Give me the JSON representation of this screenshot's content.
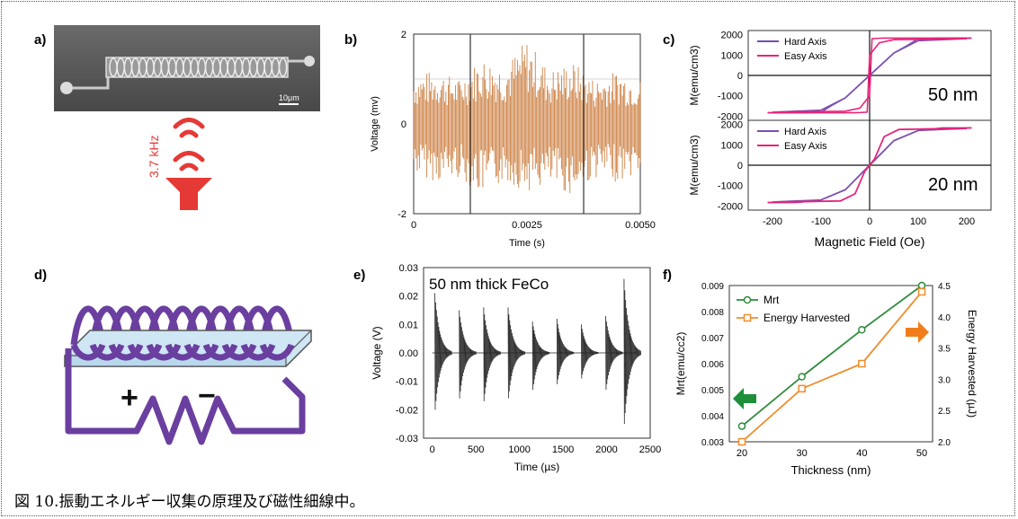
{
  "figure": {
    "caption": "図 10.振動エネルギー収集の原理及び磁性細線中。",
    "panels": {
      "a": {
        "label": "a)",
        "scale_bar": "10μm",
        "frequency": "3.7 kHz",
        "colors": {
          "speaker": "#e53935"
        },
        "icons": [
          "sound-wave-icon",
          "speaker-icon"
        ]
      },
      "d": {
        "label": "d)",
        "plus": "+",
        "minus": "−",
        "colors": {
          "coil": "#6a3fa0",
          "core": "#cfe6f5"
        },
        "icons": [
          "coil-icon",
          "resistor-icon"
        ]
      }
    }
  },
  "chart_data": [
    {
      "panel": "b)",
      "type": "line",
      "title": "",
      "xlabel": "Time (s)",
      "ylabel": "Voltage (mv)",
      "xlim": [
        0,
        0.005
      ],
      "ylim": [
        -2,
        2
      ],
      "xticks": [
        "0",
        "0.0025",
        "0.0050"
      ],
      "yticks": [
        "2",
        "0",
        "-2"
      ],
      "vertical_lines_x": [
        0.00125,
        0.00375
      ],
      "color": "#c46a22",
      "series": [
        {
          "x": [
            0,
            0.0005,
            0.001,
            0.0015,
            0.002,
            0.0025,
            0.003,
            0.0035,
            0.004,
            0.0045,
            0.005
          ],
          "y_max": [
            1.1,
            1.2,
            1.0,
            1.5,
            1.3,
            1.9,
            1.2,
            1.4,
            1.0,
            1.2,
            1.0
          ],
          "y_min": [
            -1.1,
            -1.3,
            -1.2,
            -1.6,
            -1.3,
            -1.5,
            -1.4,
            -1.6,
            -1.2,
            -1.3,
            -1.1
          ]
        }
      ]
    },
    {
      "panel": "c) top",
      "type": "line",
      "xlabel": "",
      "ylabel": "M(emu/cm3)",
      "xlim": [
        -250,
        250
      ],
      "ylim": [
        -2200,
        2200
      ],
      "yticks": [
        "2000",
        "1000",
        "0",
        "-1000",
        "-2000"
      ],
      "annotation": "50 nm",
      "series": [
        {
          "name": "Hard Axis",
          "color": "#7b4fb0",
          "x": [
            -200,
            -100,
            -50,
            0,
            50,
            80,
            100,
            150,
            210
          ],
          "y": [
            -1800,
            -1700,
            -1100,
            0,
            1100,
            1500,
            1800,
            1830,
            1830
          ]
        },
        {
          "name": "Easy Axis",
          "color": "#e8237a",
          "x": [
            -200,
            -50,
            -20,
            0,
            5,
            20,
            30,
            210
          ],
          "y": [
            -1800,
            -1750,
            -1600,
            -1000,
            1800,
            1820,
            1830,
            1830
          ]
        }
      ]
    },
    {
      "panel": "c) bottom",
      "type": "line",
      "xlabel": "Magnetic  Field (Oe)",
      "ylabel": "M(emu/cm3)",
      "xlim": [
        -250,
        250
      ],
      "ylim": [
        -2200,
        2200
      ],
      "xticks": [
        "-200",
        "-100",
        "0",
        "100",
        "200"
      ],
      "yticks": [
        "2000",
        "1000",
        "0",
        "-1000",
        "-2000"
      ],
      "annotation": "20 nm",
      "series": [
        {
          "name": "Hard Axis",
          "color": "#7b4fb0",
          "x": [
            -200,
            -100,
            -50,
            0,
            50,
            100,
            150,
            210
          ],
          "y": [
            -1800,
            -1700,
            -1200,
            0,
            1200,
            1700,
            1830,
            1830
          ]
        },
        {
          "name": "Easy Axis",
          "color": "#e8237a",
          "x": [
            -200,
            -60,
            -30,
            -10,
            10,
            30,
            60,
            210
          ],
          "y": [
            -1800,
            -1750,
            -1400,
            -300,
            300,
            1400,
            1750,
            1830
          ]
        }
      ]
    },
    {
      "panel": "e)",
      "type": "line",
      "xlabel": "Time (µs)",
      "ylabel": "Voltage (V)",
      "annotation": "50 nm thick FeCo",
      "xlim": [
        -100,
        2500
      ],
      "ylim": [
        -0.03,
        0.03
      ],
      "xticks": [
        "0",
        "500",
        "1000",
        "1500",
        "2000",
        "2500"
      ],
      "yticks": [
        "0.03",
        "0.02",
        "0.01",
        "0.00",
        "-0.01",
        "-0.02",
        "-0.03"
      ],
      "color": "#222222",
      "bursts": [
        {
          "t": 30,
          "amp_pos": 0.021,
          "amp_neg": -0.02
        },
        {
          "t": 310,
          "amp_pos": 0.015,
          "amp_neg": -0.016
        },
        {
          "t": 590,
          "amp_pos": 0.016,
          "amp_neg": -0.017
        },
        {
          "t": 870,
          "amp_pos": 0.016,
          "amp_neg": -0.016
        },
        {
          "t": 1150,
          "amp_pos": 0.011,
          "amp_neg": -0.013
        },
        {
          "t": 1430,
          "amp_pos": 0.012,
          "amp_neg": -0.011
        },
        {
          "t": 1710,
          "amp_pos": 0.01,
          "amp_neg": -0.009
        },
        {
          "t": 1990,
          "amp_pos": 0.013,
          "amp_neg": -0.013
        },
        {
          "t": 2200,
          "amp_pos": 0.026,
          "amp_neg": -0.025
        }
      ]
    },
    {
      "panel": "f)",
      "type": "line",
      "xlabel": "Thickness (nm)",
      "ylabel_left": "Mrt(emu/cc2)",
      "ylabel_right": "Energy Harvested (µJ)",
      "x": [
        20,
        30,
        40,
        50
      ],
      "xlim": [
        20,
        50
      ],
      "ylim_left": [
        0.003,
        0.009
      ],
      "ylim_right": [
        2.0,
        4.5
      ],
      "xticks": [
        "20",
        "30",
        "40",
        "50"
      ],
      "yticks_left": [
        "0.009",
        "0.008",
        "0.007",
        "0.006",
        "0.005",
        "0.004",
        "0.003"
      ],
      "yticks_right": [
        "4.5",
        "4.0",
        "3.5",
        "3.0",
        "2.5",
        "2.0"
      ],
      "series": [
        {
          "name": "Mrt",
          "axis": "left",
          "color": "#2e8b3a",
          "marker": "circle",
          "values": [
            0.0036,
            0.0055,
            0.0073,
            0.009
          ]
        },
        {
          "name": "Energy Harvested",
          "axis": "right",
          "color": "#f08c2a",
          "marker": "square",
          "values": [
            2.0,
            2.85,
            3.25,
            4.4
          ]
        }
      ],
      "arrows": {
        "left_color": "#1f8f3a",
        "right_color": "#f07d1a"
      }
    }
  ]
}
